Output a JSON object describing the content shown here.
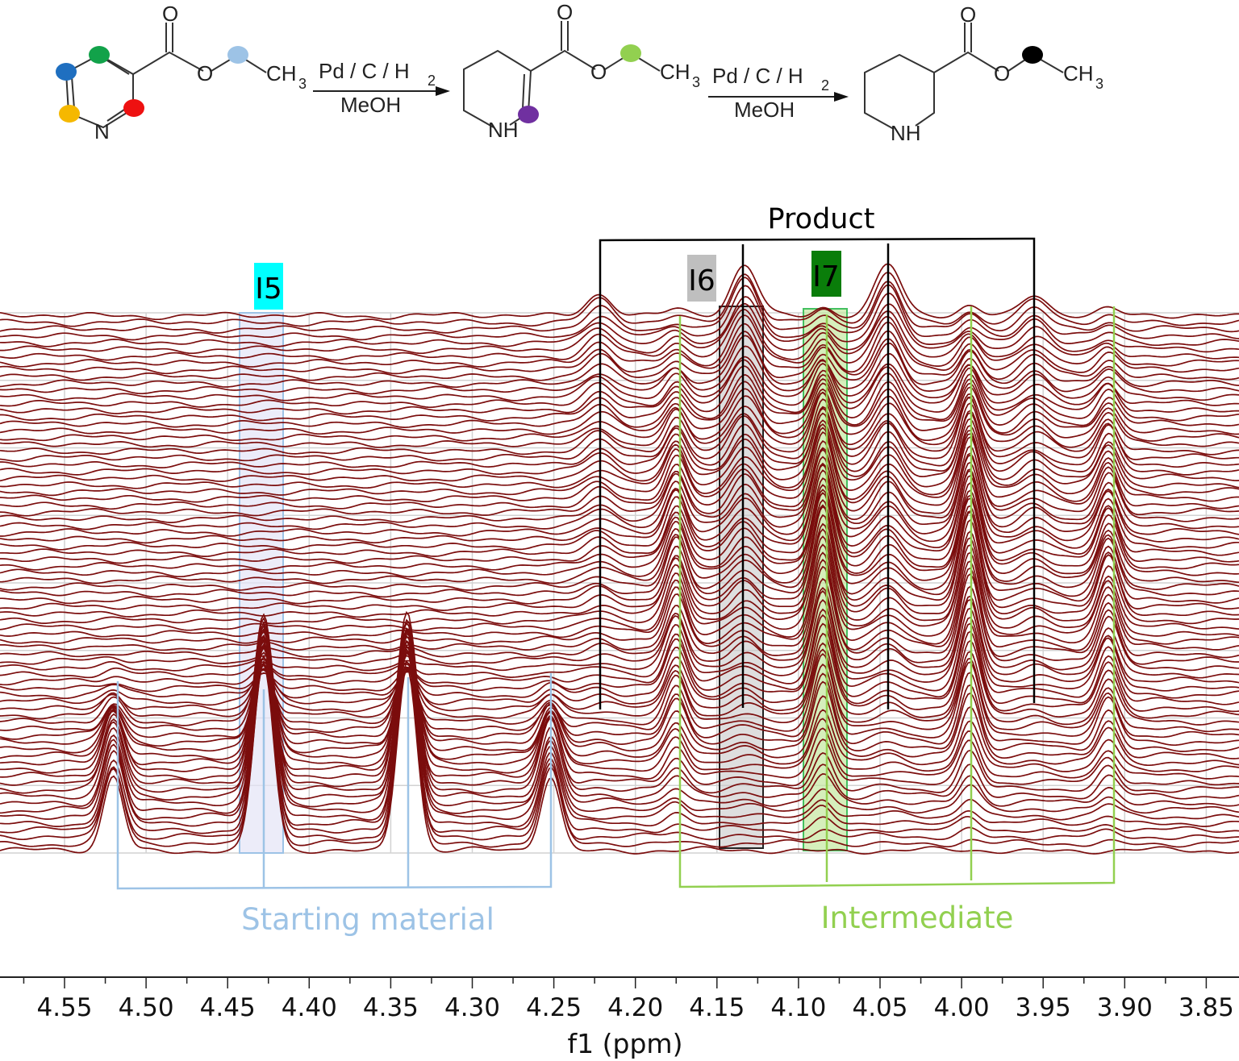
{
  "scheme": {
    "atoms": {
      "O": "O",
      "N": "N",
      "NH": "NH",
      "CH": "CH",
      "sub3": "3"
    },
    "arrow1": {
      "reagent_main": "Pd / C / H",
      "reagent_sub": "2",
      "solvent": "MeOH"
    },
    "arrow2": {
      "reagent_main": "Pd / C / H",
      "reagent_sub": "2",
      "solvent": "MeOH"
    },
    "dot_colors": {
      "sm_blue": "#1f6fc0",
      "sm_green": "#12a24a",
      "sm_yellow": "#f5b800",
      "sm_red": "#ee1111",
      "sm_ethyl": "#9dc3e6",
      "int_purple": "#7030a0",
      "int_ethyl": "#92d050",
      "prod_ethyl": "#000000"
    }
  },
  "chart_data": {
    "type": "line",
    "subtype": "stacked NMR spectra",
    "xlabel": "f1 (ppm)",
    "ylabel": "",
    "xlim": [
      4.575,
      3.85
    ],
    "x_reversed": true,
    "x_ticks": [
      "4.55",
      "4.50",
      "4.45",
      "4.40",
      "4.35",
      "4.30",
      "4.25",
      "4.20",
      "4.15",
      "4.10",
      "4.05",
      "4.00",
      "3.95",
      "3.90",
      "3.85"
    ],
    "grid": true,
    "spectrum_count": 80,
    "line_color": "#7b0d0d",
    "species": [
      {
        "name": "Starting material",
        "color": "#9dc3e6",
        "peaks_ppm": [
          4.52,
          4.428,
          4.34,
          4.252
        ],
        "relative_heights": [
          0.4,
          1.0,
          1.0,
          0.4
        ],
        "width_ppm": 0.006,
        "profile": [
          [
            0,
            1.0
          ],
          [
            10,
            0.9
          ],
          [
            18,
            0.35
          ],
          [
            24,
            0.08
          ],
          [
            32,
            0
          ]
        ]
      },
      {
        "name": "Intermediate",
        "color": "#92d050",
        "peaks_ppm": [
          4.175,
          4.085,
          3.995,
          3.91
        ],
        "relative_heights": [
          0.3,
          0.5,
          0.5,
          0.3
        ],
        "width_ppm": 0.006,
        "profile": [
          [
            0,
            0
          ],
          [
            6,
            0.25
          ],
          [
            16,
            0.75
          ],
          [
            35,
            1.0
          ],
          [
            55,
            0.7
          ],
          [
            70,
            0.3
          ],
          [
            79,
            0.1
          ]
        ]
      },
      {
        "name": "Product",
        "color": "#000000",
        "peaks_ppm": [
          4.222,
          4.133,
          4.045,
          3.955
        ],
        "relative_heights": [
          0.12,
          0.27,
          0.27,
          0.12
        ],
        "width_ppm": 0.008,
        "profile": [
          [
            0,
            0
          ],
          [
            15,
            0.15
          ],
          [
            30,
            0.35
          ],
          [
            50,
            0.7
          ],
          [
            79,
            1.0
          ]
        ]
      }
    ],
    "annotations": {
      "product_label": "Product",
      "starting_material_label": "Starting material",
      "intermediate_label": "Intermediate",
      "i5": {
        "label": "I5",
        "ppm": 4.43,
        "color": "#00ffff"
      },
      "i6": {
        "label": "I6",
        "ppm": 4.135,
        "color": "#bfbfbf"
      },
      "i7": {
        "label": "I7",
        "ppm": 4.085,
        "color": "#0a7d0a"
      }
    }
  }
}
